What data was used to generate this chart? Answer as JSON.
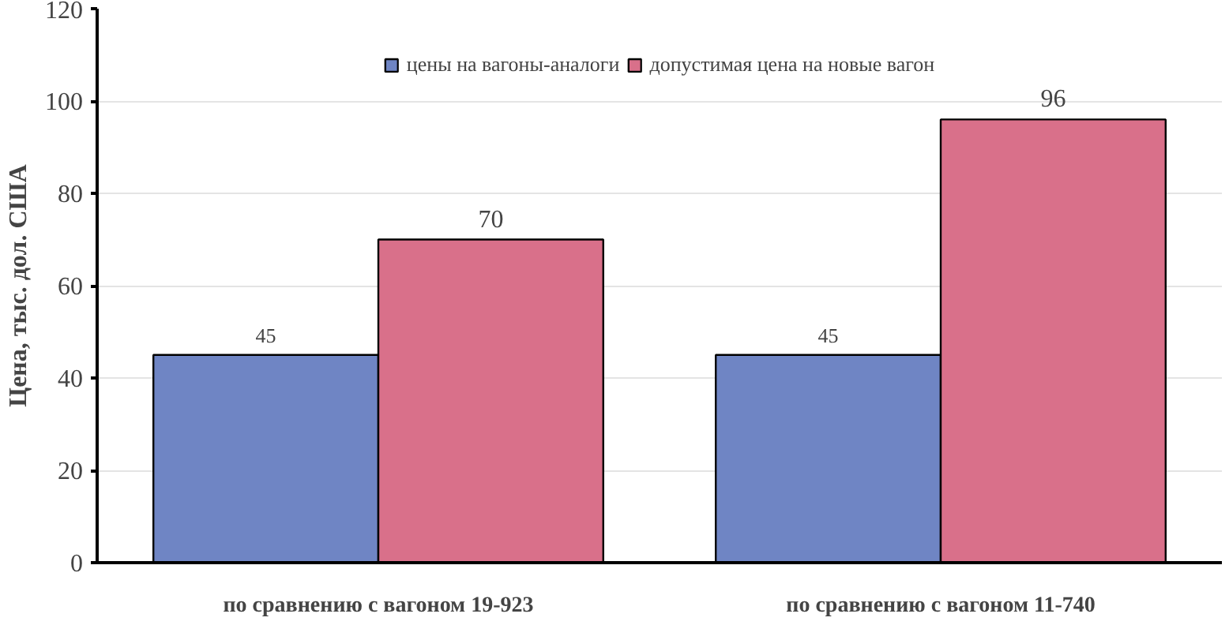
{
  "chart_data": {
    "type": "bar",
    "ylabel": "Цена, тыс. дол. США",
    "categories": [
      "по сравнению с вагоном 19-923",
      "по сравнению с вагоном 11-740"
    ],
    "series": [
      {
        "name": "цены на вагоны-аналоги",
        "color": "#6f85c4",
        "values": [
          45,
          45
        ]
      },
      {
        "name": "допустимая цена на новые вагон",
        "color": "#d9708a",
        "values": [
          70,
          96
        ]
      }
    ],
    "ylim": [
      0,
      120
    ],
    "yticks": [
      0,
      20,
      40,
      60,
      80,
      100,
      120
    ],
    "grid": "y",
    "legend": "top",
    "data_labels": true
  }
}
